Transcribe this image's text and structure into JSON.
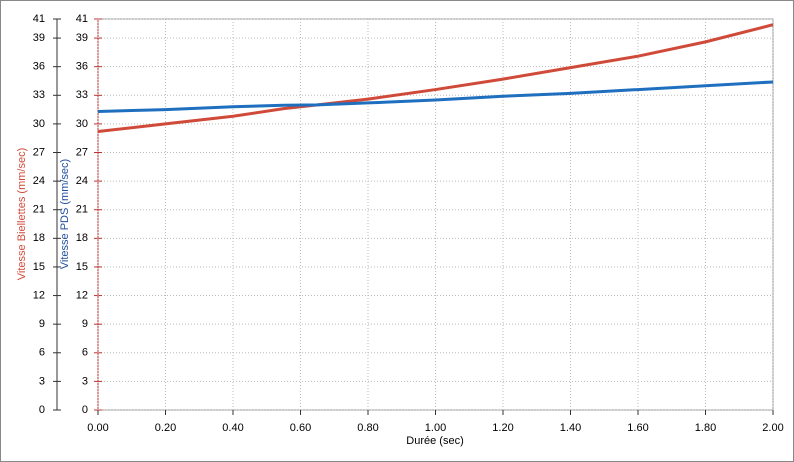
{
  "chart_data": {
    "type": "line",
    "xlabel": "Durée (sec)",
    "ylabel": "Vitesse Biellettes (mm/sec)",
    "y2label": "Vitesse PDS (mm/sec)",
    "x": [
      0,
      0.2,
      0.4,
      0.55,
      0.65,
      0.8,
      1.0,
      1.2,
      1.4,
      1.6,
      1.8,
      2.0
    ],
    "series": [
      {
        "name": "Vitesse Biellettes (mm/sec)",
        "color": "#d04a3a",
        "values": [
          29.2,
          30.0,
          30.8,
          31.6,
          32.0,
          32.6,
          33.6,
          34.7,
          35.9,
          37.1,
          38.6,
          40.4
        ]
      },
      {
        "name": "Vitesse PDS (mm/sec)",
        "color": "#1f6fbf",
        "axis": "y2",
        "values": [
          31.3,
          31.5,
          31.8,
          31.95,
          32.0,
          32.2,
          32.5,
          32.9,
          33.2,
          33.6,
          34.0,
          34.4
        ]
      }
    ],
    "xlim": [
      0,
      2
    ],
    "xticks": [
      {
        "value": 0,
        "label": "0.00"
      },
      {
        "value": 0.2,
        "label": "0.20"
      },
      {
        "value": 0.4,
        "label": "0.40"
      },
      {
        "value": 0.6,
        "label": "0.60"
      },
      {
        "value": 0.8,
        "label": "0.80"
      },
      {
        "value": 1,
        "label": "1.00"
      },
      {
        "value": 1.2,
        "label": "1.20"
      },
      {
        "value": 1.4,
        "label": "1.40"
      },
      {
        "value": 1.6,
        "label": "1.60"
      },
      {
        "value": 1.8,
        "label": "1.80"
      },
      {
        "value": 2,
        "label": "2.00"
      }
    ],
    "ylim": [
      0,
      41
    ],
    "yticks": [
      0,
      3,
      6,
      9,
      12,
      15,
      18,
      21,
      24,
      27,
      30,
      33,
      36,
      39,
      41
    ],
    "y2lim": [
      0,
      41
    ],
    "y2ticks": [
      0,
      3,
      6,
      9,
      12,
      15,
      18,
      21,
      24,
      27,
      30,
      33,
      36,
      39,
      41
    ],
    "grid": true
  }
}
